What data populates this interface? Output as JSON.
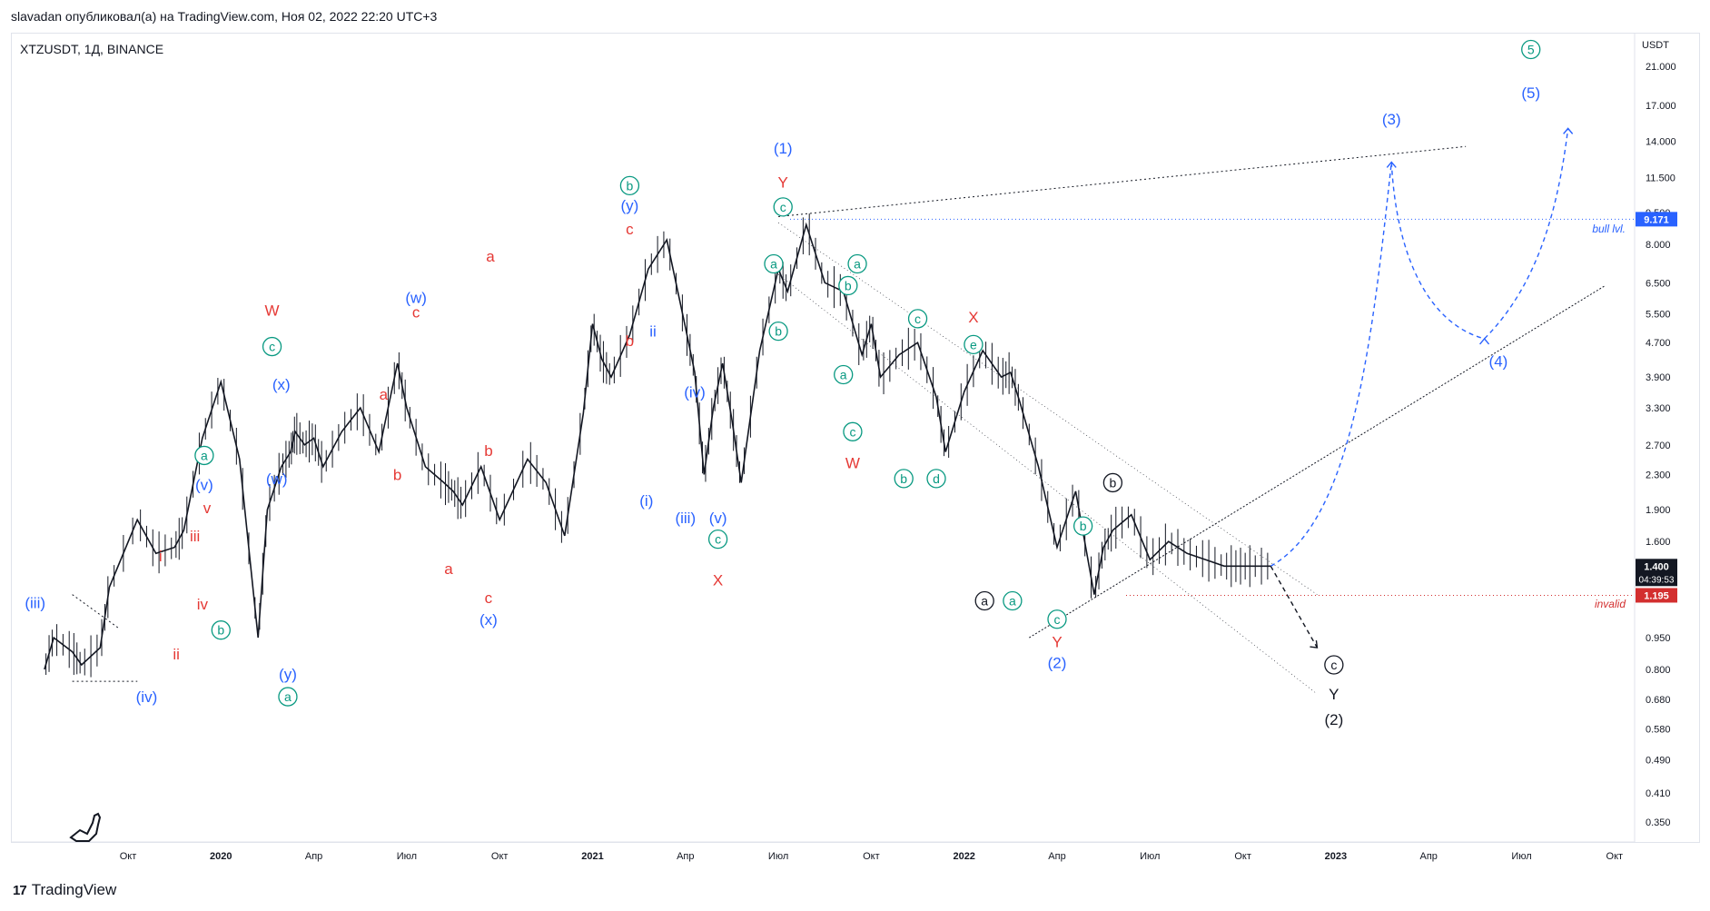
{
  "header": {
    "published": "slavadan опубликовал(а) на TradingView.com, Ноя 02, 2022 22:20 UTC+3"
  },
  "symbol_line": "XTZUSDT, 1Д, BINANCE",
  "footer": {
    "brand": "TradingView",
    "logo": "17"
  },
  "colors": {
    "red": "#e53935",
    "blue": "#2962ff",
    "teal": "#089981",
    "black": "#131722",
    "invalid": "#d32f2f",
    "bull": "#2962ff"
  },
  "chart_data": {
    "type": "line",
    "title": "",
    "xlabel": "",
    "ylabel": "USDT",
    "y_scale": "log",
    "ylim": [
      0.3,
      24
    ],
    "x_ticks": [
      {
        "label": "Окт",
        "t": 0
      },
      {
        "label": "2020",
        "t": 1
      },
      {
        "label": "Апр",
        "t": 2
      },
      {
        "label": "Июл",
        "t": 3
      },
      {
        "label": "Окт",
        "t": 4
      },
      {
        "label": "2021",
        "t": 5
      },
      {
        "label": "Апр",
        "t": 6
      },
      {
        "label": "Июл",
        "t": 7
      },
      {
        "label": "Окт",
        "t": 8
      },
      {
        "label": "2022",
        "t": 9
      },
      {
        "label": "Апр",
        "t": 10
      },
      {
        "label": "Июл",
        "t": 11
      },
      {
        "label": "Окт",
        "t": 12
      },
      {
        "label": "2023",
        "t": 13
      },
      {
        "label": "Апр",
        "t": 14
      },
      {
        "label": "Июл",
        "t": 15
      },
      {
        "label": "Окт",
        "t": 16
      }
    ],
    "y_ticks": [
      "21.000",
      "17.000",
      "14.000",
      "11.500",
      "9.500",
      "8.000",
      "6.500",
      "5.500",
      "4.700",
      "3.900",
      "3.300",
      "2.700",
      "2.300",
      "1.900",
      "1.600",
      "1.400",
      "1.195",
      "0.950",
      "0.800",
      "0.680",
      "0.580",
      "0.490",
      "0.410",
      "0.350"
    ],
    "y_tick_values": [
      21,
      17,
      14,
      11.5,
      9.5,
      8,
      6.5,
      5.5,
      4.7,
      3.9,
      3.3,
      2.7,
      2.3,
      1.9,
      1.6,
      1.4,
      1.195,
      0.95,
      0.8,
      0.68,
      0.58,
      0.49,
      0.41,
      0.35
    ],
    "price": {
      "x": [
        -0.9,
        -0.8,
        -0.6,
        -0.5,
        -0.3,
        -0.2,
        0.1,
        0.3,
        0.5,
        0.6,
        0.8,
        1.0,
        1.2,
        1.4,
        1.5,
        1.65,
        1.75,
        1.8,
        1.9,
        2.0,
        2.1,
        2.3,
        2.5,
        2.7,
        2.9,
        3.0,
        3.2,
        3.4,
        3.5,
        3.6,
        3.8,
        4.0,
        4.3,
        4.5,
        4.7,
        4.9,
        5.0,
        5.1,
        5.2,
        5.4,
        5.6,
        5.8,
        6.0,
        6.1,
        6.2,
        6.3,
        6.4,
        6.5,
        6.6,
        6.8,
        7.0,
        7.1,
        7.3,
        7.5,
        7.7,
        7.9,
        8.0,
        8.1,
        8.3,
        8.5,
        8.7,
        8.8,
        9.0,
        9.2,
        9.4,
        9.5,
        9.6,
        9.8,
        10.0,
        10.2,
        10.4,
        10.5,
        10.6,
        10.8,
        11.0,
        11.2,
        11.4,
        11.6,
        11.8,
        11.95,
        12.1,
        12.3
      ],
      "y": [
        0.8,
        0.95,
        0.88,
        0.82,
        0.9,
        1.25,
        1.8,
        1.5,
        1.55,
        1.7,
        2.8,
        3.8,
        2.5,
        0.95,
        1.9,
        2.4,
        2.6,
        2.9,
        2.7,
        2.8,
        2.4,
        2.9,
        3.3,
        2.6,
        4.2,
        3.3,
        2.4,
        2.2,
        2.1,
        1.95,
        2.4,
        1.8,
        2.5,
        2.2,
        1.65,
        3.2,
        5.2,
        4.3,
        3.9,
        4.9,
        7.0,
        8.2,
        5.1,
        4.0,
        2.3,
        3.3,
        4.2,
        3.1,
        2.2,
        4.5,
        7.0,
        6.2,
        8.9,
        6.5,
        6.2,
        4.4,
        5.2,
        3.9,
        4.4,
        4.7,
        3.5,
        2.6,
        3.6,
        4.5,
        3.9,
        4.0,
        3.4,
        2.4,
        1.55,
        2.1,
        1.2,
        1.55,
        1.7,
        1.85,
        1.45,
        1.6,
        1.5,
        1.45,
        1.4,
        1.4,
        1.4,
        1.4
      ]
    },
    "levels": [
      {
        "name": "bull lvl.",
        "value": 9.171,
        "badge": "9.171"
      },
      {
        "name": "invalid",
        "value": 1.195,
        "badge": "1.195"
      }
    ],
    "last_price": {
      "value": "1.400",
      "countdown": "04:39:53"
    },
    "projections": {
      "blue_path": {
        "x": [
          12.3,
          13.6,
          13.8,
          14.6,
          15.5
        ],
        "y": [
          1.4,
          12.5,
          7,
          4.8,
          15
        ]
      },
      "black_path": {
        "x": [
          12.3,
          12.8
        ],
        "y": [
          1.4,
          0.9
        ]
      }
    },
    "annotations": [
      {
        "text": "(iii)",
        "t": -1.0,
        "v": 1.15,
        "c": "blue"
      },
      {
        "text": "(iv)",
        "t": 0.2,
        "v": 0.69,
        "c": "blue"
      },
      {
        "text": "i",
        "t": 0.35,
        "v": 1.48,
        "c": "red"
      },
      {
        "text": "ii",
        "t": 0.52,
        "v": 0.87,
        "c": "red"
      },
      {
        "text": "iii",
        "t": 0.72,
        "v": 1.65,
        "c": "red"
      },
      {
        "text": "iv",
        "t": 0.8,
        "v": 1.14,
        "c": "red"
      },
      {
        "text": "v",
        "t": 0.85,
        "v": 1.92,
        "c": "red"
      },
      {
        "text": "(v)",
        "t": 0.82,
        "v": 2.18,
        "c": "blue"
      },
      {
        "text": "a",
        "t": 0.82,
        "v": 2.55,
        "c": "teal",
        "circle": true
      },
      {
        "text": "b",
        "t": 1.0,
        "v": 0.99,
        "c": "teal",
        "circle": true
      },
      {
        "text": "W",
        "t": 1.55,
        "v": 5.6,
        "c": "red"
      },
      {
        "text": "c",
        "t": 1.55,
        "v": 4.6,
        "c": "teal",
        "circle": true
      },
      {
        "text": "(x)",
        "t": 1.65,
        "v": 3.75,
        "c": "blue"
      },
      {
        "text": "(w)",
        "t": 1.6,
        "v": 2.25,
        "c": "blue"
      },
      {
        "text": "(y)",
        "t": 1.72,
        "v": 0.78,
        "c": "blue"
      },
      {
        "text": "a",
        "t": 1.72,
        "v": 0.69,
        "c": "teal",
        "circle": true
      },
      {
        "text": "a",
        "t": 2.75,
        "v": 3.55,
        "c": "red"
      },
      {
        "text": "b",
        "t": 2.9,
        "v": 2.3,
        "c": "red"
      },
      {
        "text": "(w)",
        "t": 3.1,
        "v": 6.0,
        "c": "blue"
      },
      {
        "text": "c",
        "t": 3.1,
        "v": 5.55,
        "c": "red"
      },
      {
        "text": "a",
        "t": 3.45,
        "v": 1.38,
        "c": "red"
      },
      {
        "text": "b",
        "t": 3.88,
        "v": 2.62,
        "c": "red"
      },
      {
        "text": "a",
        "t": 3.9,
        "v": 7.5,
        "c": "red"
      },
      {
        "text": "c",
        "t": 3.88,
        "v": 1.18,
        "c": "red"
      },
      {
        "text": "(x)",
        "t": 3.88,
        "v": 1.05,
        "c": "blue"
      },
      {
        "text": "b",
        "t": 5.4,
        "v": 11.0,
        "c": "teal",
        "circle": true
      },
      {
        "text": "(y)",
        "t": 5.4,
        "v": 9.9,
        "c": "blue"
      },
      {
        "text": "c",
        "t": 5.4,
        "v": 8.7,
        "c": "red"
      },
      {
        "text": "b",
        "t": 5.4,
        "v": 4.75,
        "c": "red"
      },
      {
        "text": "ii",
        "t": 5.65,
        "v": 5.0,
        "c": "blue"
      },
      {
        "text": "(i)",
        "t": 5.58,
        "v": 2.0,
        "c": "blue"
      },
      {
        "text": "(iv)",
        "t": 6.1,
        "v": 3.6,
        "c": "blue"
      },
      {
        "text": "(iii)",
        "t": 6.0,
        "v": 1.82,
        "c": "blue"
      },
      {
        "text": "(v)",
        "t": 6.35,
        "v": 1.82,
        "c": "blue"
      },
      {
        "text": "c",
        "t": 6.35,
        "v": 1.62,
        "c": "teal",
        "circle": true
      },
      {
        "text": "X",
        "t": 6.35,
        "v": 1.3,
        "c": "red"
      },
      {
        "text": "a",
        "t": 6.95,
        "v": 7.2,
        "c": "teal",
        "circle": true
      },
      {
        "text": "b",
        "t": 7.0,
        "v": 5.0,
        "c": "teal",
        "circle": true
      },
      {
        "text": "(1)",
        "t": 7.05,
        "v": 13.5,
        "c": "blue"
      },
      {
        "text": "Y",
        "t": 7.05,
        "v": 11.2,
        "c": "red"
      },
      {
        "text": "c",
        "t": 7.05,
        "v": 9.8,
        "c": "teal",
        "circle": true
      },
      {
        "text": "a",
        "t": 7.85,
        "v": 7.2,
        "c": "teal",
        "circle": true
      },
      {
        "text": "b",
        "t": 7.75,
        "v": 6.4,
        "c": "teal",
        "circle": true
      },
      {
        "text": "a",
        "t": 7.7,
        "v": 3.95,
        "c": "teal",
        "circle": true
      },
      {
        "text": "c",
        "t": 7.8,
        "v": 2.9,
        "c": "teal",
        "circle": true
      },
      {
        "text": "W",
        "t": 7.8,
        "v": 2.45,
        "c": "red"
      },
      {
        "text": "c",
        "t": 8.5,
        "v": 5.35,
        "c": "teal",
        "circle": true
      },
      {
        "text": "X",
        "t": 9.1,
        "v": 5.4,
        "c": "red"
      },
      {
        "text": "e",
        "t": 9.1,
        "v": 4.65,
        "c": "teal",
        "circle": true
      },
      {
        "text": "b",
        "t": 8.35,
        "v": 2.25,
        "c": "teal",
        "circle": true
      },
      {
        "text": "d",
        "t": 8.7,
        "v": 2.25,
        "c": "teal",
        "circle": true
      },
      {
        "text": "b",
        "t": 10.28,
        "v": 1.74,
        "c": "teal",
        "circle": true
      },
      {
        "text": "a",
        "t": 9.22,
        "v": 1.16,
        "c": "black",
        "circle": true
      },
      {
        "text": "a",
        "t": 9.52,
        "v": 1.16,
        "c": "teal",
        "circle": true
      },
      {
        "text": "c",
        "t": 10.0,
        "v": 1.05,
        "c": "teal",
        "circle": true
      },
      {
        "text": "Y",
        "t": 10.0,
        "v": 0.93,
        "c": "red"
      },
      {
        "text": "(2)",
        "t": 10.0,
        "v": 0.83,
        "c": "blue"
      },
      {
        "text": "b",
        "t": 10.6,
        "v": 2.2,
        "c": "black",
        "circle": true
      },
      {
        "text": "c",
        "t": 12.98,
        "v": 0.82,
        "c": "black",
        "circle": true
      },
      {
        "text": "Y",
        "t": 12.98,
        "v": 0.7,
        "c": "black"
      },
      {
        "text": "(2)",
        "t": 12.98,
        "v": 0.61,
        "c": "black"
      },
      {
        "text": "(3)",
        "t": 13.6,
        "v": 15.8,
        "c": "blue"
      },
      {
        "text": "(4)",
        "t": 14.75,
        "v": 4.25,
        "c": "blue"
      },
      {
        "text": "5",
        "t": 15.1,
        "v": 23.0,
        "c": "teal",
        "circle": true
      },
      {
        "text": "(5)",
        "t": 15.1,
        "v": 18.2,
        "c": "blue"
      }
    ]
  }
}
